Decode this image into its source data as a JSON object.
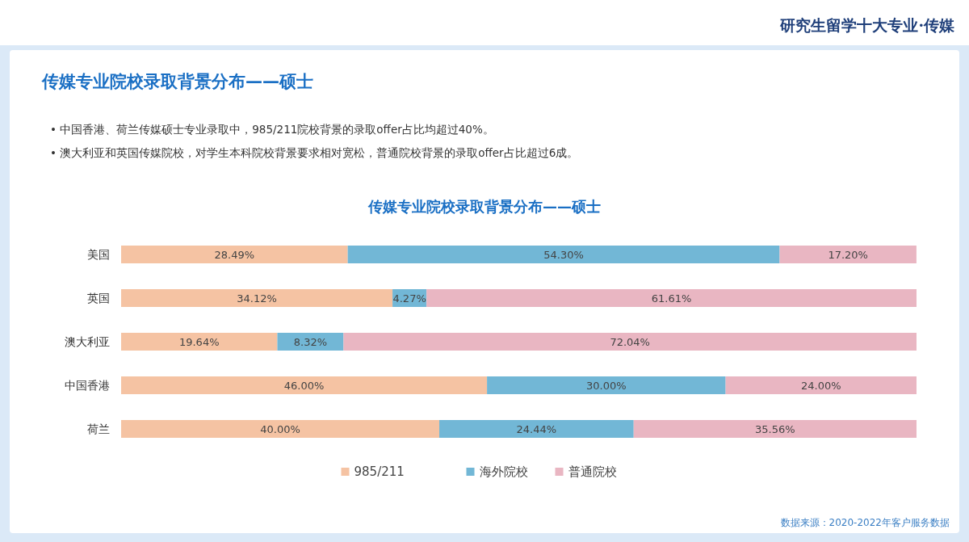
{
  "chart_data": {
    "type": "bar",
    "orientation": "horizontal",
    "stacked": true,
    "title": "传媒专业院校录取背景分布——硕士",
    "subtitle": "传媒专业院校录取背景分布——硕士",
    "annotations": [
      "研究生留学十大专业·传媒",
      "•  中国香港、荷兰传媒硕士专业录取中，985/211院校背景的录取offer占比均超过40%。",
      "•  澳大利亚和英国传媒院校，对学生本科院校背景要求相对宽松，普通院校背景的录取offer占比超过6成。",
      "数据来源：2020-2022年客户服务数据"
    ],
    "categories": [
      "美国",
      "英国",
      "澳大利亚",
      "中国香港",
      "荷兰"
    ],
    "xlim": [
      0,
      100
    ],
    "series": [
      {
        "name": "985/211",
        "color": "#f5c3a3",
        "values": [
          28.49,
          34.12,
          19.64,
          46.0,
          40.0
        ],
        "value_labels": [
          "28.49%",
          "34.12%",
          "19.64%",
          "46.00%",
          "40.00%"
        ]
      },
      {
        "name": "海外院校",
        "color": "#72b7d6",
        "values": [
          54.3,
          4.27,
          8.32,
          30.0,
          24.44
        ],
        "value_labels": [
          "54.30%",
          "4.27%",
          "8.32%",
          "30.00%",
          "24.44%"
        ]
      },
      {
        "name": "普通院校",
        "color": "#e9b6c2",
        "values": [
          17.2,
          61.61,
          72.04,
          24.0,
          35.56
        ],
        "value_labels": [
          "17.20%",
          "61.61%",
          "72.04%",
          "24.00%",
          "35.56%"
        ]
      }
    ],
    "legend": "bottom"
  }
}
